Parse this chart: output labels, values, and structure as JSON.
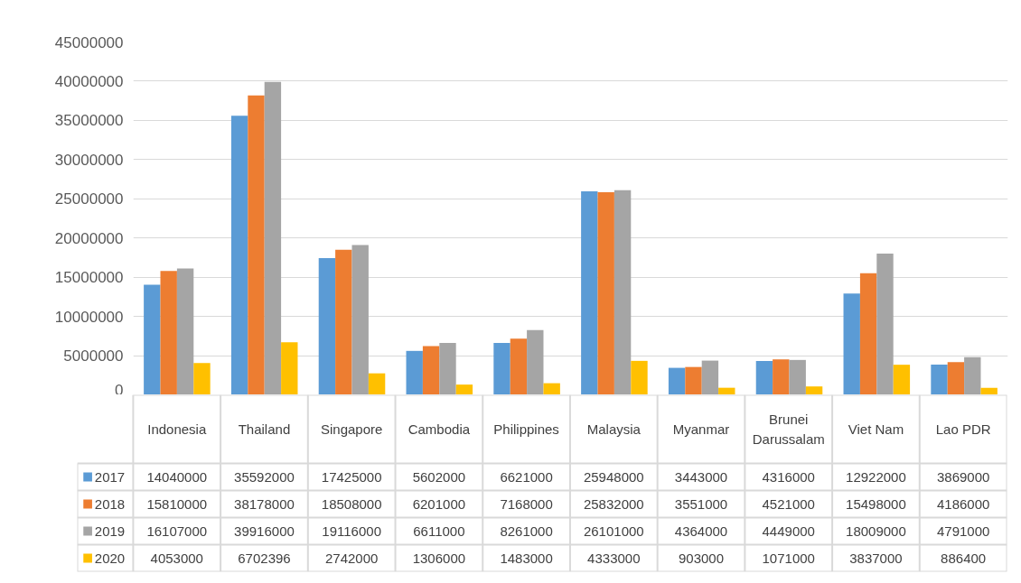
{
  "chart_data": {
    "type": "bar",
    "categories": [
      "Indonesia",
      "Thailand",
      "Singapore",
      "Cambodia",
      "Philippines",
      "Malaysia",
      "Myanmar",
      "Brunei Darussalam",
      "Viet Nam",
      "Lao PDR"
    ],
    "series": [
      {
        "name": "2017",
        "color": "#5b9bd5",
        "values": [
          14040000,
          35592000,
          17425000,
          5602000,
          6621000,
          25948000,
          3443000,
          4316000,
          12922000,
          3869000
        ]
      },
      {
        "name": "2018",
        "color": "#ed7d31",
        "values": [
          15810000,
          38178000,
          18508000,
          6201000,
          7168000,
          25832000,
          3551000,
          4521000,
          15498000,
          4186000
        ]
      },
      {
        "name": "2019",
        "color": "#a5a5a5",
        "values": [
          16107000,
          39916000,
          19116000,
          6611000,
          8261000,
          26101000,
          4364000,
          4449000,
          18009000,
          4791000
        ]
      },
      {
        "name": "2020",
        "color": "#ffc000",
        "values": [
          4053000,
          6702396,
          2742000,
          1306000,
          1483000,
          4333000,
          903000,
          1071000,
          3837000,
          886400
        ]
      }
    ],
    "ylim": [
      0,
      45000000
    ],
    "yticks": [
      0,
      5000000,
      10000000,
      15000000,
      20000000,
      25000000,
      30000000,
      35000000,
      40000000,
      45000000
    ],
    "grid": "y",
    "legend": "bottom",
    "data_labels": true
  }
}
